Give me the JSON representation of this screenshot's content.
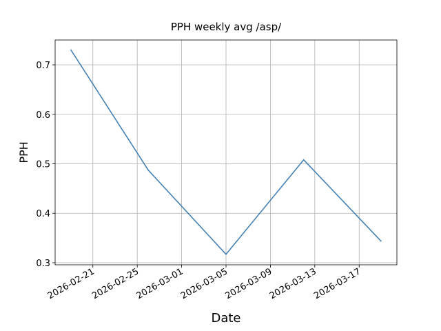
{
  "chart_data": {
    "type": "line",
    "title": "PPH weekly avg /asp/",
    "x_label": "Date",
    "y_label": "PPH",
    "x": [
      "2026-02-19",
      "2026-02-26",
      "2026-03-05",
      "2026-03-12",
      "2026-03-19"
    ],
    "series": [
      {
        "name": "PPH",
        "color": "#4682b4",
        "values": [
          0.731,
          0.487,
          0.317,
          0.508,
          0.343
        ]
      }
    ],
    "xlim": [
      "2026-02-17T14:24:00Z",
      "2026-03-20T09:36:00Z"
    ],
    "xticks": [
      "2026-02-21",
      "2026-02-25",
      "2026-03-01",
      "2026-03-05",
      "2026-03-09",
      "2026-03-13",
      "2026-03-17"
    ],
    "ylim": [
      0.2958,
      0.7502
    ],
    "yticks": [
      0.3,
      0.4,
      0.5,
      0.6,
      0.7
    ],
    "grid": true
  }
}
